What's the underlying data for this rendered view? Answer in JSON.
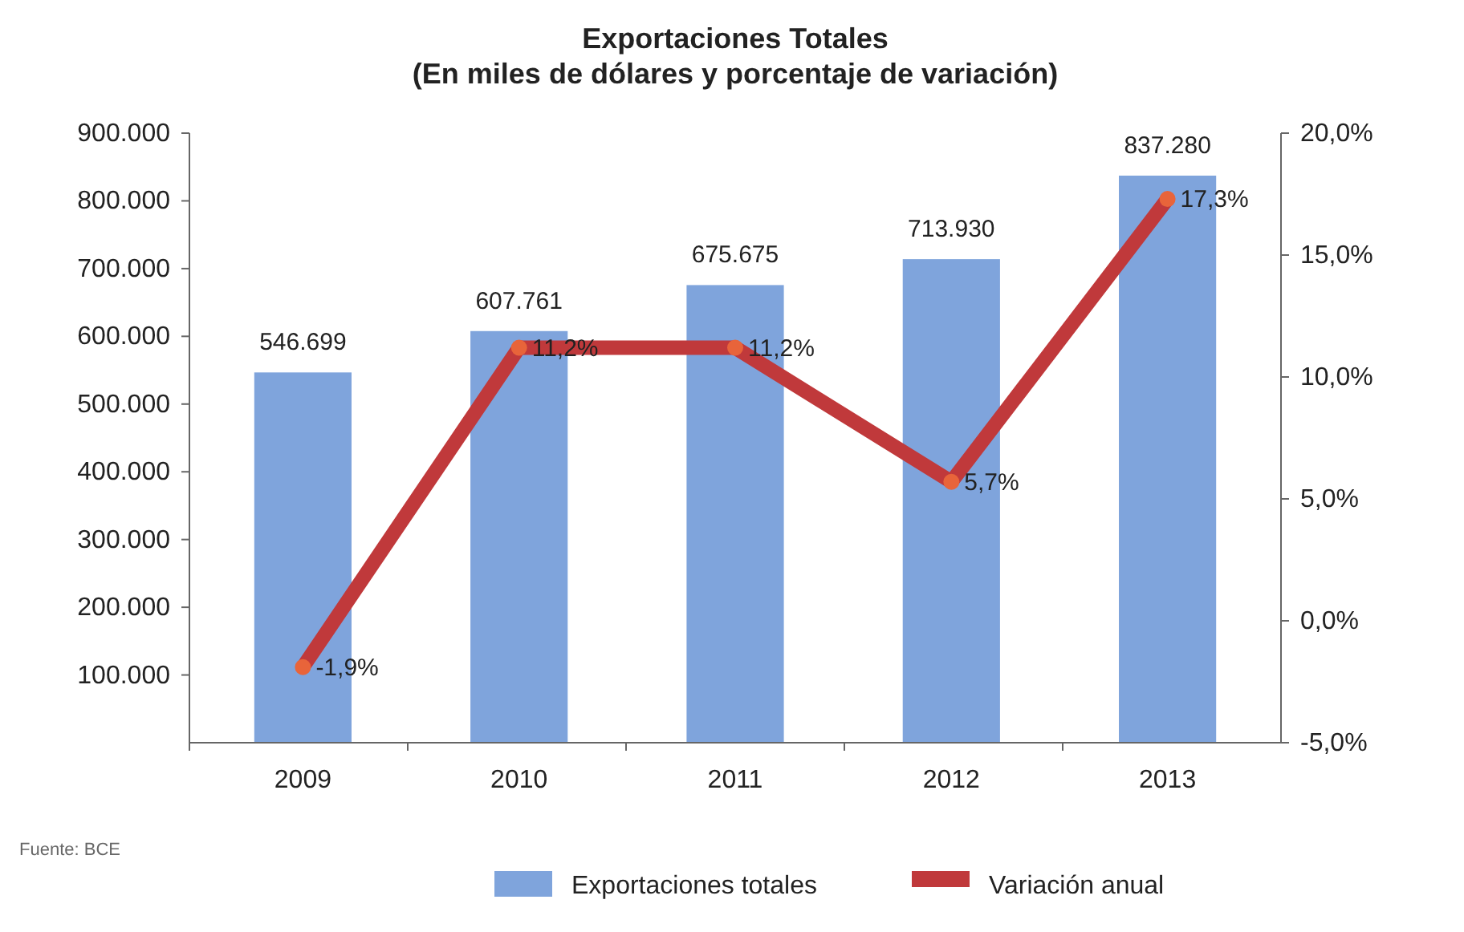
{
  "chart_data": {
    "type": "bar",
    "title": "Exportaciones Totales",
    "subtitle": "(En miles de dólares y porcentaje de variación)",
    "categories": [
      "2009",
      "2010",
      "2011",
      "2012",
      "2013"
    ],
    "series": [
      {
        "name": "Exportaciones totales",
        "color": "#7fa4dc",
        "values": [
          546699,
          607761,
          675675,
          713930,
          837280
        ],
        "value_labels": [
          "546.699",
          "607.761",
          "675.675",
          "713.930",
          "837.280"
        ]
      },
      {
        "name": "Variación anual",
        "type": "line",
        "axis": "y2",
        "color": "#c0393b",
        "marker": "circle",
        "values": [
          -1.9,
          11.2,
          11.2,
          5.7,
          17.3
        ],
        "value_labels": [
          "-1,9%",
          "11,2%",
          "11,2%",
          "5,7%",
          "17,3%"
        ]
      }
    ],
    "ylim": [
      0,
      900000
    ],
    "yticks": [
      {
        "value": 100000,
        "label": "100.000"
      },
      {
        "value": 200000,
        "label": "200.000"
      },
      {
        "value": 300000,
        "label": "300.000"
      },
      {
        "value": 400000,
        "label": "400.000"
      },
      {
        "value": 500000,
        "label": "500.000"
      },
      {
        "value": 600000,
        "label": "600.000"
      },
      {
        "value": 700000,
        "label": "700.000"
      },
      {
        "value": 800000,
        "label": "800.000"
      },
      {
        "value": 900000,
        "label": "900.000"
      }
    ],
    "y2lim": [
      -5,
      20
    ],
    "y2ticks": [
      {
        "value": -5,
        "label": "-5,0%"
      },
      {
        "value": 0,
        "label": "0,0%"
      },
      {
        "value": 5,
        "label": "5,0%"
      },
      {
        "value": 10,
        "label": "10,0%"
      },
      {
        "value": 15,
        "label": "15,0%"
      },
      {
        "value": 20,
        "label": "20,0%"
      }
    ],
    "legend": "bottom",
    "grid": false,
    "annotations": [
      "Fuente: BCE"
    ]
  }
}
